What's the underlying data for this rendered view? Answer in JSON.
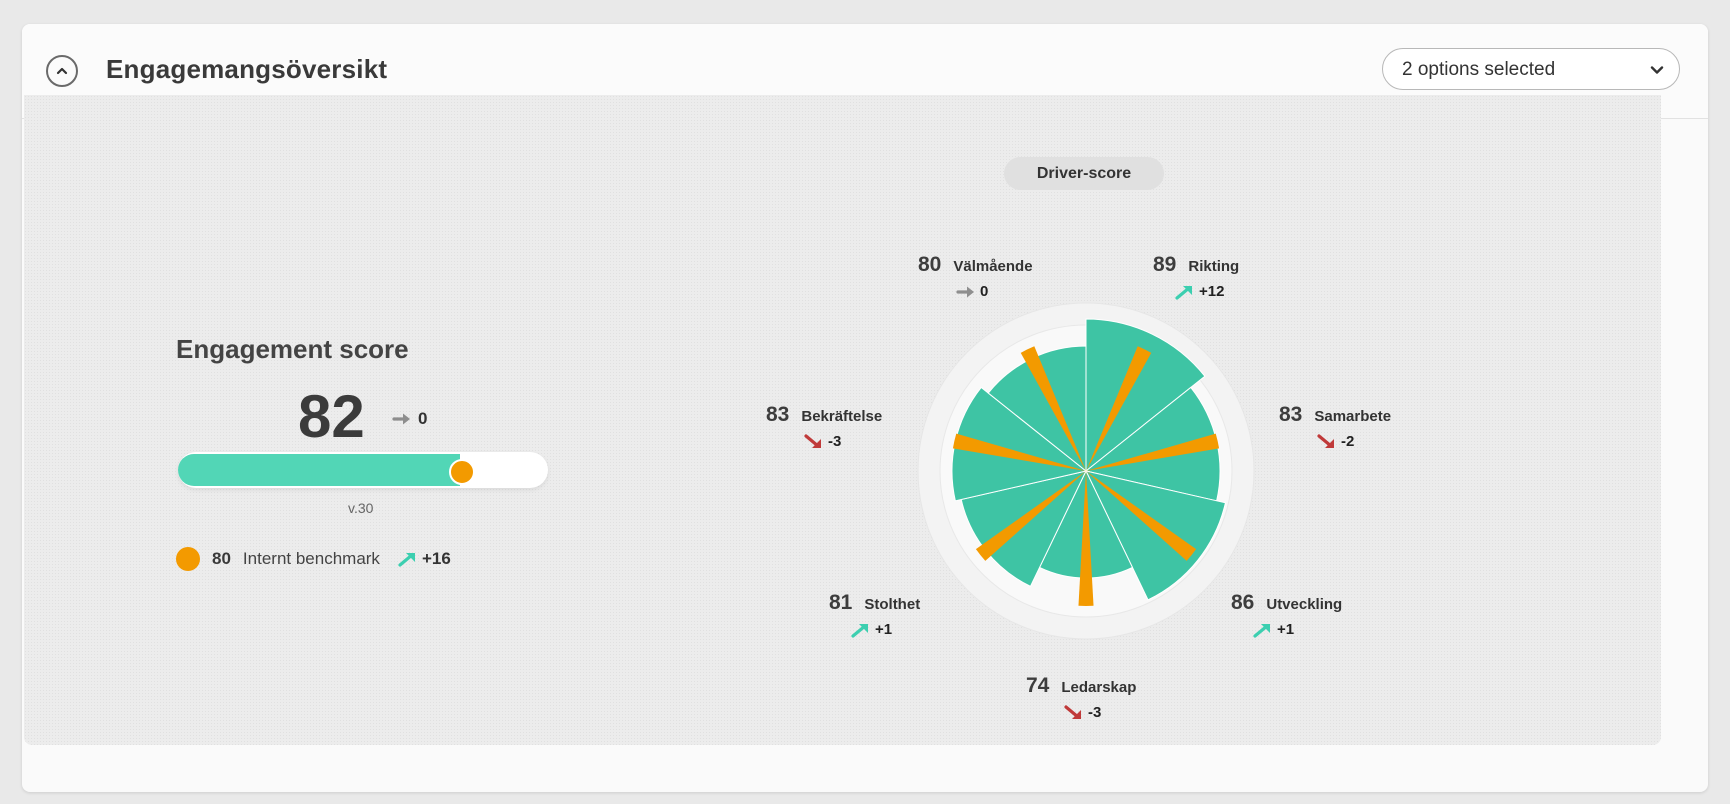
{
  "header": {
    "title": "Engagemangsöversikt",
    "select_value": "2 options selected"
  },
  "engagement": {
    "title": "Engagement score",
    "score": "82",
    "trend_value": "0",
    "trend_dir": "flat",
    "progress_fraction": 0.82,
    "progress_label": "v.30",
    "benchmark": {
      "value": "80",
      "label": "Internt benchmark",
      "trend_value": "+16",
      "trend_dir": "up"
    }
  },
  "driver": {
    "label": "Driver-score",
    "items": [
      {
        "name": "Välmående",
        "score": "80",
        "delta": "0",
        "dir": "flat"
      },
      {
        "name": "Rikting",
        "score": "89",
        "delta": "+12",
        "dir": "up"
      },
      {
        "name": "Samarbete",
        "score": "83",
        "delta": "-2",
        "dir": "down"
      },
      {
        "name": "Utveckling",
        "score": "86",
        "delta": "+1",
        "dir": "up"
      },
      {
        "name": "Ledarskap",
        "score": "74",
        "delta": "-3",
        "dir": "down"
      },
      {
        "name": "Stolthet",
        "score": "81",
        "delta": "+1",
        "dir": "up"
      },
      {
        "name": "Bekräftelse",
        "score": "83",
        "delta": "-3",
        "dir": "down"
      }
    ]
  },
  "chart_data": {
    "type": "polar-bar",
    "series": [
      {
        "values": [
          80,
          89,
          83,
          86,
          74,
          81,
          83
        ]
      }
    ],
    "categories": [
      "Välmående",
      "Rikting",
      "Samarbete",
      "Utveckling",
      "Ledarskap",
      "Stolthet",
      "Bekräftelse"
    ],
    "benchmark_value": 80
  },
  "colors": {
    "teal": "#3ec4a4",
    "teal_light": "#52d6b6",
    "orange": "#f39a00",
    "up": "#3ccfb0",
    "down": "#c03a3a",
    "flat": "#8e8e8e"
  }
}
